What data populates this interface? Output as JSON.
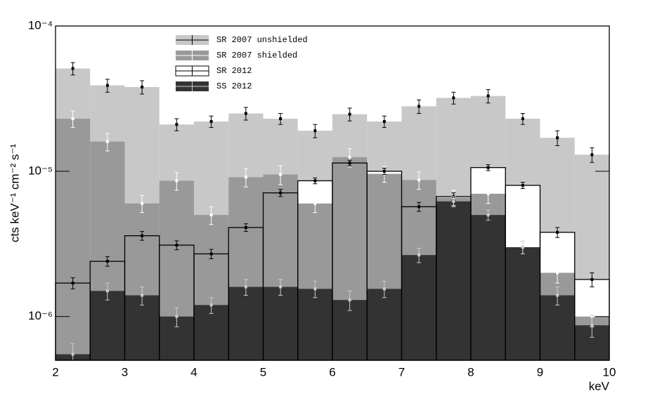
{
  "chart_data": {
    "type": "histogram",
    "x_label": "keV",
    "y_label": "cts keV⁻¹ cm⁻² s⁻¹",
    "bins": [
      2,
      2.5,
      3,
      3.5,
      4,
      4.5,
      5,
      5.5,
      6,
      6.5,
      7,
      7.5,
      8,
      8.5,
      9,
      9.5,
      10
    ],
    "log_y": true,
    "xlim": [
      2,
      10
    ],
    "xticks": [
      2,
      3,
      4,
      5,
      6,
      7,
      8,
      9,
      10
    ],
    "ylim": [
      5e-07,
      0.0001
    ],
    "yticks": [
      {
        "value": 1e-06,
        "label": "10⁻⁶"
      },
      {
        "value": 1e-05,
        "label": "10⁻⁵"
      },
      {
        "value": 0.0001,
        "label": "10⁻⁴"
      }
    ],
    "series": [
      {
        "name": "SR 2007 unshielded",
        "color": "#c8c8c8",
        "error_color": "#000000",
        "values": [
          5.1e-05,
          3.9e-05,
          3.8e-05,
          2.1e-05,
          2.2e-05,
          2.5e-05,
          2.3e-05,
          1.9e-05,
          2.47e-05,
          2.2e-05,
          2.8e-05,
          3.2e-05,
          3.3e-05,
          2.3e-05,
          1.7e-05,
          1.3e-05
        ],
        "errors": [
          5e-06,
          4e-06,
          4e-06,
          2e-06,
          2e-06,
          2.5e-06,
          2e-06,
          2e-06,
          2.5e-06,
          2e-06,
          3e-06,
          3e-06,
          3.5e-06,
          2e-06,
          2e-06,
          1.5e-06
        ]
      },
      {
        "name": "SR 2007 shielded",
        "color": "#999999",
        "error_color": "#ffffff",
        "values": [
          2.3e-05,
          1.6e-05,
          6e-06,
          8.6e-06,
          5e-06,
          9.1e-06,
          9.5e-06,
          6e-06,
          1.25e-05,
          9.6e-06,
          8.7e-06,
          6.6e-06,
          7e-06,
          3e-06,
          2e-06,
          1e-06
        ],
        "errors": [
          3e-06,
          2.2e-06,
          8e-07,
          1.2e-06,
          7e-07,
          1.3e-06,
          1.4e-06,
          8e-07,
          1.8e-06,
          1.2e-06,
          1.2e-06,
          8e-07,
          1e-06,
          3e-07,
          3e-07,
          1.5e-07
        ]
      },
      {
        "name": "SR 2012",
        "color": "#ffffff",
        "error_color": "#000000",
        "values": [
          1.7e-06,
          2.4e-06,
          3.6e-06,
          3.1e-06,
          2.7e-06,
          4.1e-06,
          7.1e-06,
          8.6e-06,
          1.14e-05,
          1e-05,
          5.7e-06,
          6.7e-06,
          1.06e-05,
          8e-06,
          3.8e-06,
          1.8e-06
        ],
        "errors": [
          1.5e-07,
          1.8e-07,
          2.5e-07,
          2.2e-07,
          2e-07,
          2.5e-07,
          4e-07,
          4e-07,
          5e-07,
          5e-07,
          4e-07,
          4e-07,
          5e-07,
          4e-07,
          3e-07,
          2e-07
        ]
      },
      {
        "name": "SS 2012",
        "color": "#333333",
        "error_color": "#cccccc",
        "values": [
          5.5e-07,
          1.5e-06,
          1.4e-06,
          1e-06,
          1.2e-06,
          1.6e-06,
          1.6e-06,
          1.55e-06,
          1.3e-06,
          1.55e-06,
          2.65e-06,
          6.2e-06,
          5e-06,
          3e-06,
          1.4e-06,
          8.7e-07
        ],
        "errors": [
          1e-07,
          2e-07,
          2e-07,
          1.5e-07,
          1.5e-07,
          2e-07,
          2e-07,
          2e-07,
          2e-07,
          2e-07,
          3e-07,
          5e-07,
          4e-07,
          3e-07,
          2e-07,
          1.5e-07
        ]
      }
    ]
  }
}
